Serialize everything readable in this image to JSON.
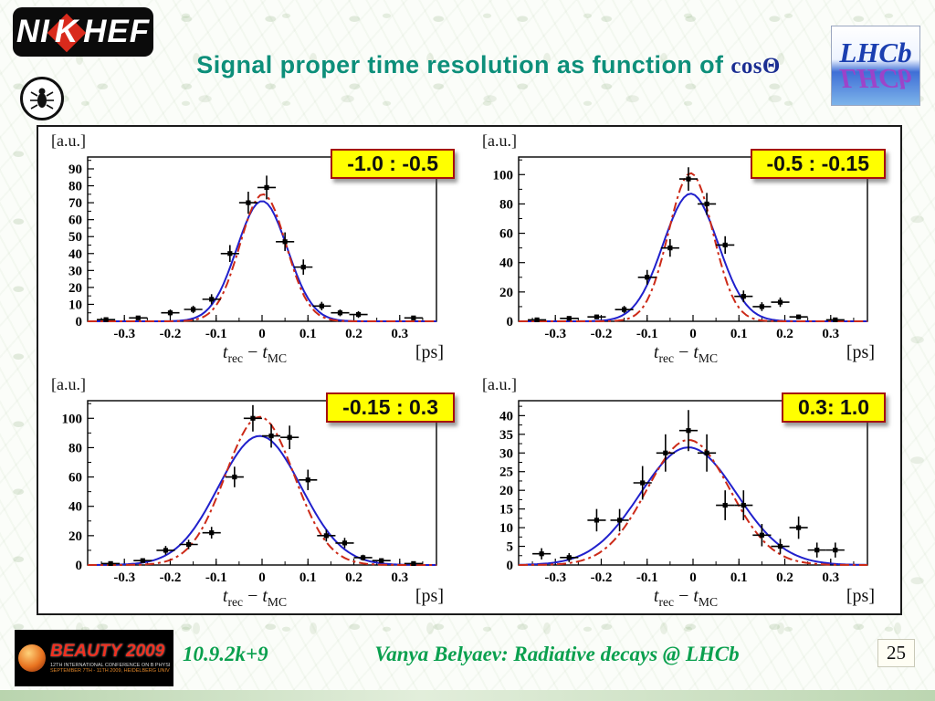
{
  "header": {
    "nikhef_logo": {
      "pre": "NI",
      "k": "K",
      "post": "HEF"
    },
    "title": "Signal proper time resolution as function of",
    "title_math": "cosΘ",
    "lhcb_logo": "LHCb"
  },
  "axis": {
    "y_unit": "[a.u.]",
    "x_var": "t",
    "x_sub_rec": "rec",
    "x_minus": "−",
    "x_sub_mc": "MC",
    "x_unit": "[ps]"
  },
  "colors": {
    "title_text": "#0d8f7a",
    "footer_text": "#0aa04e",
    "fit_blue": "#2020cc",
    "fit_red": "#cc2a18",
    "bin_label_bg": "#ffff00",
    "bin_label_border": "#a50e0e",
    "data_marker": "#000000"
  },
  "chart_data": {
    "type": "scatter",
    "layout": "2x2 grid of proper-time resolution histograms with gaussian fits",
    "shared": {
      "xlabel": "t_rec − t_MC [ps]",
      "ylabel": "[a.u.]",
      "xlim": [
        -0.38,
        0.38
      ],
      "xticks": [
        -0.3,
        -0.2,
        -0.1,
        0,
        0.1,
        0.2,
        0.3
      ],
      "grid": false,
      "legend": "none",
      "series_styles": [
        {
          "name": "data",
          "style": "black square markers with x/y error bars"
        },
        {
          "name": "fit A",
          "style": "blue solid gaussian"
        },
        {
          "name": "fit B",
          "style": "red dash-dot gaussian"
        }
      ]
    },
    "charts": [
      {
        "bin_label": "-1.0 : -0.5",
        "ylim": [
          0,
          97
        ],
        "ytick_step": 10,
        "ytick_max": 90,
        "xerr": 0.02,
        "points": [
          [
            -0.34,
            1,
            1
          ],
          [
            -0.27,
            2,
            1.2
          ],
          [
            -0.2,
            5,
            2
          ],
          [
            -0.15,
            7,
            2.2
          ],
          [
            -0.11,
            13,
            3
          ],
          [
            -0.07,
            40,
            5
          ],
          [
            -0.03,
            70,
            6.5
          ],
          [
            0.01,
            79,
            7
          ],
          [
            0.05,
            47,
            5.5
          ],
          [
            0.09,
            32,
            4.5
          ],
          [
            0.13,
            9,
            2.5
          ],
          [
            0.17,
            5,
            2
          ],
          [
            0.21,
            4,
            2
          ],
          [
            0.33,
            2,
            1.2
          ]
        ],
        "fits": {
          "blue_solid": {
            "mean": 0.0,
            "sigma": 0.055,
            "amp": 71
          },
          "red_dashed": {
            "mean": 0.002,
            "sigma": 0.05,
            "amp": 75
          }
        }
      },
      {
        "bin_label": "-0.5 : -0.15",
        "ylim": [
          0,
          112
        ],
        "ytick_step": 20,
        "ytick_max": 100,
        "xerr": 0.02,
        "points": [
          [
            -0.34,
            1,
            1
          ],
          [
            -0.27,
            2,
            1.2
          ],
          [
            -0.21,
            3,
            1.5
          ],
          [
            -0.15,
            8,
            2.5
          ],
          [
            -0.1,
            30,
            5
          ],
          [
            -0.05,
            50,
            6
          ],
          [
            -0.01,
            97,
            8
          ],
          [
            0.03,
            80,
            7.5
          ],
          [
            0.07,
            52,
            6
          ],
          [
            0.11,
            17,
            4
          ],
          [
            0.15,
            10,
            3
          ],
          [
            0.19,
            13,
            3.2
          ],
          [
            0.23,
            3,
            1.5
          ],
          [
            0.31,
            1,
            1
          ]
        ],
        "fits": {
          "blue_solid": {
            "mean": -0.005,
            "sigma": 0.06,
            "amp": 87
          },
          "red_dashed": {
            "mean": -0.005,
            "sigma": 0.048,
            "amp": 101
          }
        }
      },
      {
        "bin_label": "-0.15 : 0.3",
        "ylim": [
          0,
          112
        ],
        "ytick_step": 20,
        "ytick_max": 100,
        "xerr": 0.02,
        "points": [
          [
            -0.33,
            1,
            1
          ],
          [
            -0.26,
            3,
            1.5
          ],
          [
            -0.21,
            10,
            3
          ],
          [
            -0.16,
            14,
            3.2
          ],
          [
            -0.11,
            22,
            4
          ],
          [
            -0.06,
            60,
            7
          ],
          [
            -0.02,
            100,
            9
          ],
          [
            0.02,
            88,
            8
          ],
          [
            0.06,
            87,
            8
          ],
          [
            0.1,
            58,
            7
          ],
          [
            0.14,
            20,
            4
          ],
          [
            0.18,
            15,
            3.5
          ],
          [
            0.22,
            5,
            2
          ],
          [
            0.26,
            3,
            1.5
          ],
          [
            0.33,
            1,
            1
          ]
        ],
        "fits": {
          "blue_solid": {
            "mean": -0.005,
            "sigma": 0.09,
            "amp": 88
          },
          "red_dashed": {
            "mean": -0.005,
            "sigma": 0.075,
            "amp": 101
          }
        }
      },
      {
        "bin_label": "0.3: 1.0",
        "ylim": [
          0,
          44
        ],
        "ytick_step": 5,
        "ytick_max": 40,
        "xerr": 0.02,
        "points": [
          [
            -0.33,
            3,
            1.5
          ],
          [
            -0.27,
            2,
            1.2
          ],
          [
            -0.21,
            12,
            3
          ],
          [
            -0.16,
            12,
            3
          ],
          [
            -0.11,
            22,
            4.5
          ],
          [
            -0.06,
            30,
            5
          ],
          [
            -0.01,
            36,
            5.5
          ],
          [
            0.03,
            30,
            5
          ],
          [
            0.07,
            16,
            4
          ],
          [
            0.11,
            16,
            4
          ],
          [
            0.15,
            8,
            3
          ],
          [
            0.19,
            5,
            2
          ],
          [
            0.23,
            10,
            3
          ],
          [
            0.27,
            4,
            2
          ],
          [
            0.31,
            4,
            2
          ]
        ],
        "fits": {
          "blue_solid": {
            "mean": -0.01,
            "sigma": 0.105,
            "amp": 31.5
          },
          "red_dashed": {
            "mean": -0.01,
            "sigma": 0.09,
            "amp": 33.5
          }
        }
      }
    ]
  },
  "footer": {
    "beauty": {
      "title": "BEAUTY 2009",
      "line1": "12TH INTERNATIONAL CONFERENCE ON B PHYSICS AT HADRON MACHINES",
      "line2": "SEPTEMBER 7TH - 11TH 2009, HEIDELBERG UNIVERSITY, GERMANY"
    },
    "date": "10.9.2k+9",
    "credit": "Vanya Belyaev: Radiative decays @ LHCb",
    "page": "25"
  }
}
